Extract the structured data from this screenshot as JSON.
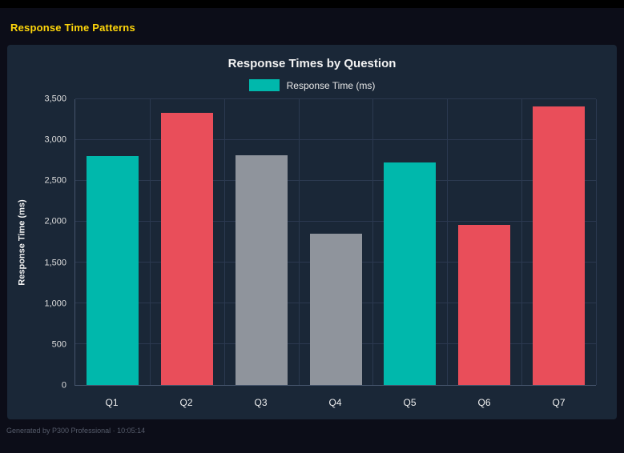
{
  "page": {
    "title": "Response Time Patterns",
    "footer": "Generated by P300 Professional · 10:05:14"
  },
  "colors": {
    "accent_yellow": "#ffd60a",
    "teal": "#00b8ac",
    "red": "#e94e5a",
    "gray": "#8f949c",
    "panel_bg": "#1a2737"
  },
  "chart_data": {
    "type": "bar",
    "title": "Response Times by Question",
    "legend": [
      {
        "label": "Response Time (ms)",
        "color": "#00b8ac"
      }
    ],
    "legend_position": "top",
    "categories": [
      "Q1",
      "Q2",
      "Q3",
      "Q4",
      "Q5",
      "Q6",
      "Q7"
    ],
    "values": [
      2800,
      3330,
      2810,
      1850,
      2730,
      1960,
      3410
    ],
    "bar_colors": [
      "#00b8ac",
      "#e94e5a",
      "#8f949c",
      "#8f949c",
      "#00b8ac",
      "#e94e5a",
      "#e94e5a"
    ],
    "xlabel": "",
    "ylabel": "Response Time (ms)",
    "ylim": [
      0,
      3500
    ],
    "yticks": [
      0,
      500,
      1000,
      1500,
      2000,
      2500,
      3000,
      3500
    ],
    "ytick_labels": [
      "0",
      "500",
      "1,000",
      "1,500",
      "2,000",
      "2,500",
      "3,000",
      "3,500"
    ],
    "grid": true
  }
}
